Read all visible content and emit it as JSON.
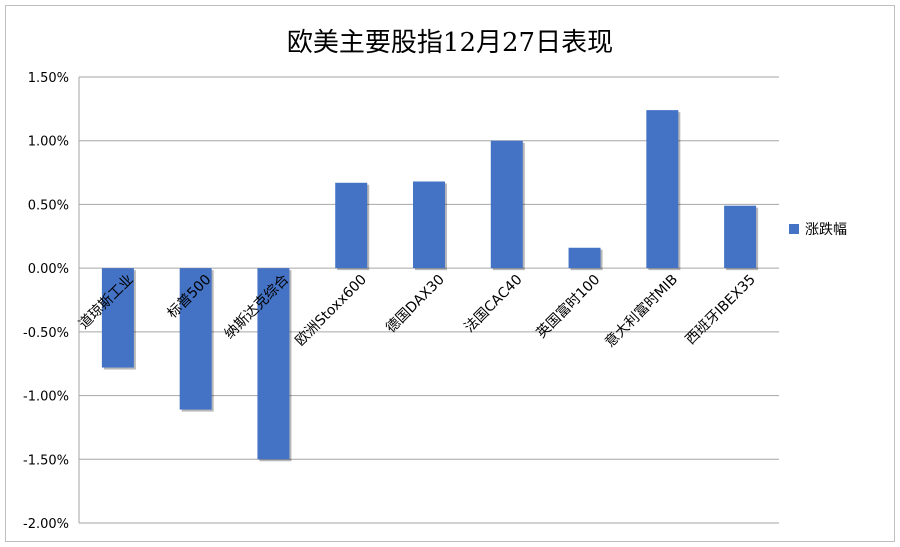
{
  "chart_data": {
    "type": "bar",
    "title": "欧美主要股指12月27日表现",
    "categories": [
      "道琼斯工业",
      "标普500",
      "纳斯达克综合",
      "欧洲Stoxx600",
      "德国DAX30",
      "法国CAC40",
      "英国富时100",
      "意大利富时MIB",
      "西班牙IBEX35"
    ],
    "series": [
      {
        "name": "涨跌幅",
        "values": [
          -0.78,
          -1.11,
          -1.5,
          0.67,
          0.68,
          1.0,
          0.16,
          1.24,
          0.49
        ]
      }
    ],
    "y_ticks": [
      "1.50%",
      "1.00%",
      "0.50%",
      "0.00%",
      "-0.50%",
      "-1.00%",
      "-1.50%",
      "-2.00%"
    ],
    "ylim": [
      -2.0,
      1.5
    ],
    "grid": true,
    "legend": "right",
    "colors": {
      "bar": "#4472c4",
      "grid": "#a6a6a6"
    }
  }
}
